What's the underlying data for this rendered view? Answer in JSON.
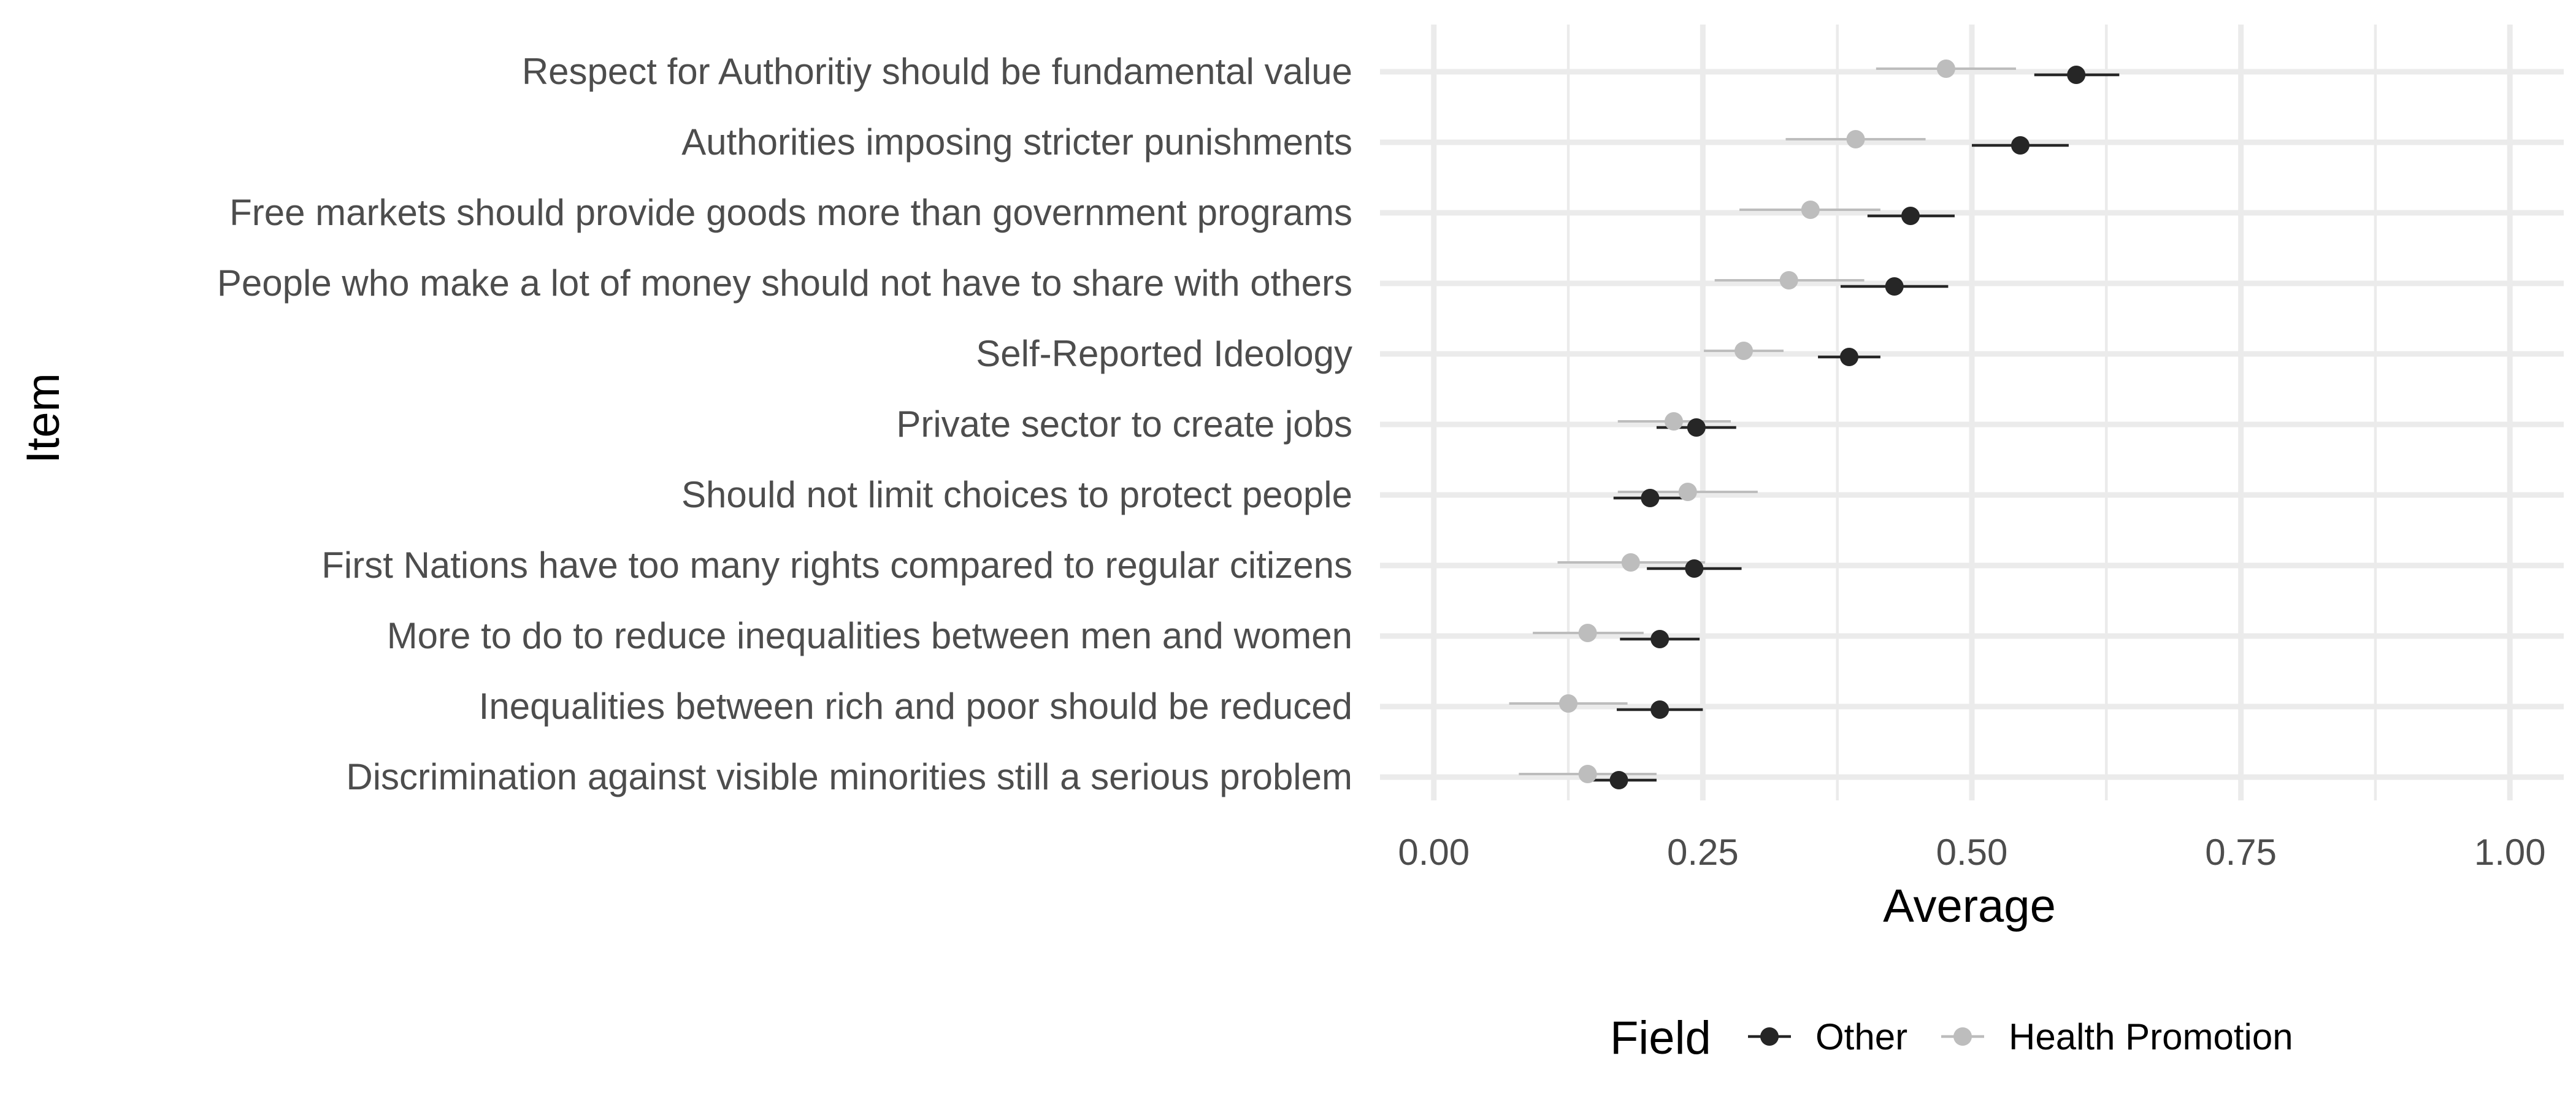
{
  "chart_data": {
    "type": "scatter",
    "xlabel": "Average",
    "ylabel": "Item",
    "xlim": [
      -0.05,
      1.05
    ],
    "x_ticks": [
      "0.00",
      "0.25",
      "0.50",
      "0.75",
      "1.00"
    ],
    "x_tick_values": [
      0,
      0.25,
      0.5,
      0.75,
      1.0
    ],
    "grid": true,
    "legend": {
      "title": "Field",
      "position": "bottom"
    },
    "categories": [
      "Respect for Authoritiy should be fundamental value",
      "Authorities imposing stricter punishments",
      "Free markets should provide goods more than government programs",
      "People who make a lot of money should not have to share with others",
      "Self-Reported Ideology",
      "Private sector to create jobs",
      "Should not limit choices to protect people",
      "First Nations have too many rights compared to regular citizens",
      "More to do to reduce inequalities between men and women",
      "Inequalities between rich and poor should be reduced",
      "Discrimination against visible minorities still a serious problem"
    ],
    "series": [
      {
        "name": "Other",
        "color": "#262626",
        "values": [
          0.597,
          0.545,
          0.443,
          0.428,
          0.386,
          0.244,
          0.201,
          0.242,
          0.21,
          0.21,
          0.172
        ],
        "lower": [
          0.558,
          0.5,
          0.403,
          0.378,
          0.357,
          0.207,
          0.167,
          0.198,
          0.173,
          0.17,
          0.138
        ],
        "upper": [
          0.637,
          0.59,
          0.484,
          0.478,
          0.415,
          0.281,
          0.236,
          0.286,
          0.247,
          0.25,
          0.207
        ]
      },
      {
        "name": "Health Promotion",
        "color": "#bdbdbd",
        "values": [
          0.476,
          0.392,
          0.35,
          0.33,
          0.288,
          0.223,
          0.236,
          0.183,
          0.143,
          0.125,
          0.143
        ],
        "lower": [
          0.411,
          0.327,
          0.284,
          0.261,
          0.251,
          0.171,
          0.171,
          0.115,
          0.092,
          0.07,
          0.079
        ],
        "upper": [
          0.541,
          0.457,
          0.415,
          0.4,
          0.325,
          0.276,
          0.301,
          0.252,
          0.195,
          0.18,
          0.207
        ]
      }
    ]
  }
}
